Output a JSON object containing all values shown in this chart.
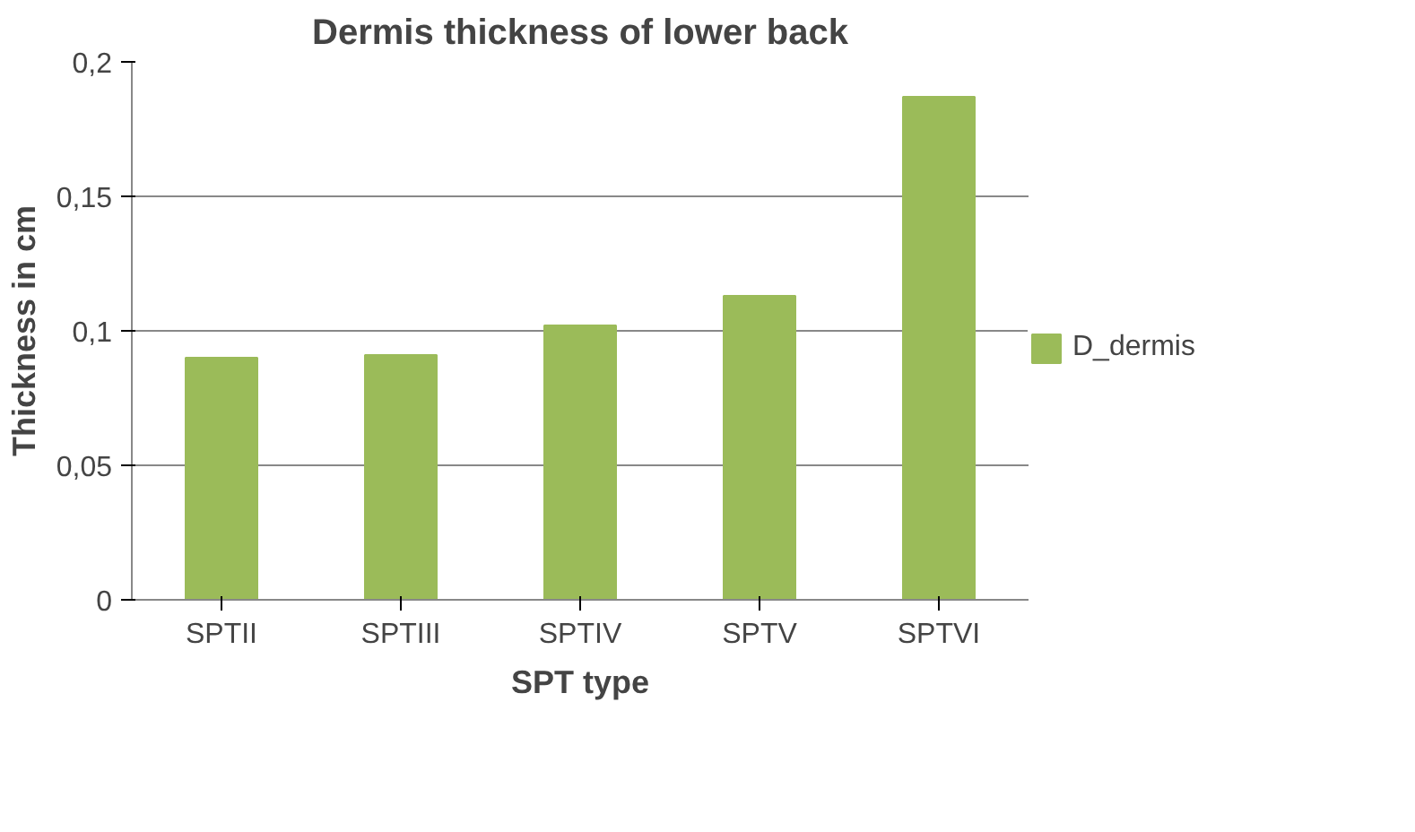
{
  "chart_data": {
    "type": "bar",
    "title": "Dermis thickness of lower back",
    "xlabel": "SPT type",
    "ylabel": "Thickness in cm",
    "categories": [
      "SPTII",
      "SPTIII",
      "SPTIV",
      "SPTV",
      "SPTVI"
    ],
    "series": [
      {
        "name": "D_dermis",
        "color": "#9bbb59",
        "values": [
          0.09,
          0.091,
          0.102,
          0.113,
          0.187
        ]
      }
    ],
    "ylim": [
      0,
      0.2
    ],
    "yticks": [
      {
        "value": 0,
        "label": "0"
      },
      {
        "value": 0.05,
        "label": "0,05"
      },
      {
        "value": 0.1,
        "label": "0,1"
      },
      {
        "value": 0.15,
        "label": "0,15"
      },
      {
        "value": 0.2,
        "label": "0,2"
      }
    ],
    "grid": "y",
    "legend": "right"
  }
}
